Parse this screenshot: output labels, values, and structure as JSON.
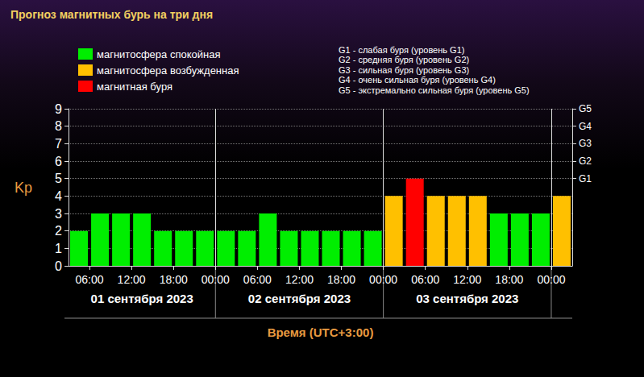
{
  "chart_data": {
    "type": "bar",
    "title": "Прогноз магнитных бурь на три дня",
    "x": [
      4.5,
      7.5,
      10.5,
      13.5,
      16.5,
      19.5,
      22.5,
      25.5,
      28.5,
      31.5,
      34.5,
      37.5,
      40.5,
      43.5,
      46.5,
      49.5,
      52.5,
      55.5,
      58.5,
      61.5,
      64.5,
      67.5,
      70.5,
      73.5
    ],
    "series": [
      {
        "name": "магнитосфера спокойная",
        "color": "#00ee00",
        "values": [
          2,
          3,
          3,
          3,
          2,
          2,
          2,
          2,
          2,
          3,
          2,
          2,
          2,
          2,
          2,
          null,
          null,
          null,
          null,
          null,
          3,
          3,
          3,
          null
        ]
      },
      {
        "name": "магнитосфера возбужденная",
        "color": "#ffc000",
        "values": [
          null,
          null,
          null,
          null,
          null,
          null,
          null,
          null,
          null,
          null,
          null,
          null,
          null,
          null,
          null,
          4,
          null,
          4,
          4,
          4,
          null,
          null,
          null,
          4
        ]
      },
      {
        "name": "магнитная буря",
        "color": "#ff0000",
        "values": [
          null,
          null,
          null,
          null,
          null,
          null,
          null,
          null,
          null,
          null,
          null,
          null,
          null,
          null,
          null,
          null,
          5,
          null,
          null,
          null,
          null,
          null,
          null,
          null
        ]
      }
    ],
    "xlim": [
      3,
      75
    ],
    "xticks": [
      {
        "value": 6,
        "label": "06:00"
      },
      {
        "value": 12,
        "label": "12:00"
      },
      {
        "value": 18,
        "label": "18:00"
      },
      {
        "value": 24,
        "label": "00:00"
      },
      {
        "value": 30,
        "label": "06:00"
      },
      {
        "value": 36,
        "label": "12:00"
      },
      {
        "value": 42,
        "label": "18:00"
      },
      {
        "value": 48,
        "label": "00:00"
      },
      {
        "value": 54,
        "label": "06:00"
      },
      {
        "value": 60,
        "label": "12:00"
      },
      {
        "value": 66,
        "label": "18:00"
      },
      {
        "value": 72,
        "label": "00:00"
      }
    ],
    "ylim": [
      0,
      9
    ],
    "yticks": [
      0,
      1,
      2,
      3,
      4,
      5,
      6,
      7,
      8,
      9
    ],
    "y2lim": [
      0,
      9
    ],
    "y2ticks": [
      {
        "value": 5,
        "label": "G1"
      },
      {
        "value": 6,
        "label": "G2"
      },
      {
        "value": 7,
        "label": "G3"
      },
      {
        "value": 8,
        "label": "G4"
      },
      {
        "value": 9,
        "label": "G5"
      }
    ],
    "x_label": "Время (UTC+3:00)",
    "y_label": "Kp",
    "days": [
      {
        "label": "01 сентября 2023",
        "from": 0,
        "to": 24
      },
      {
        "label": "02 сентября 2023",
        "from": 24,
        "to": 48
      },
      {
        "label": "03 сентября 2023",
        "from": 48,
        "to": 72
      }
    ],
    "annotations": [
      "G1 - слабая буря (уровень G1)",
      "G2 - средняя буря (уровень G2)",
      "G3 - сильная буря (уровень G3)",
      "G4 - очень сильная буря (уровень G4)",
      "G5 - экстремально сильная буря (уровень G5)"
    ],
    "grid": true,
    "legend": "top-left"
  }
}
